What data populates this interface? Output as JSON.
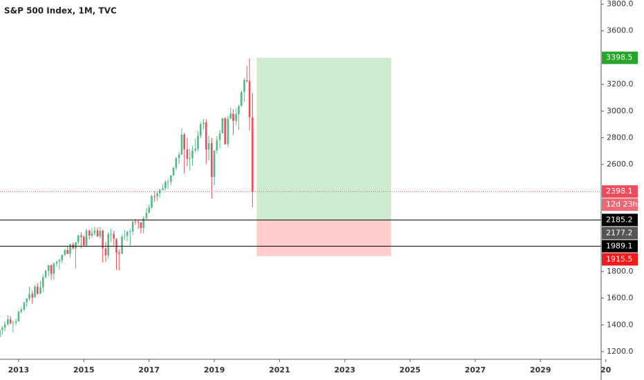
{
  "chart_data": {
    "type": "candlestick",
    "title": "S&P 500 Index, 1M, TVC",
    "x": [
      2012.42,
      2012.5,
      2012.58,
      2012.67,
      2012.75,
      2012.83,
      2012.92,
      2013.0,
      2013.08,
      2013.17,
      2013.25,
      2013.33,
      2013.42,
      2013.5,
      2013.58,
      2013.67,
      2013.75,
      2013.83,
      2013.92,
      2014.0,
      2014.08,
      2014.17,
      2014.25,
      2014.33,
      2014.42,
      2014.5,
      2014.58,
      2014.67,
      2014.75,
      2014.83,
      2014.92,
      2015.0,
      2015.08,
      2015.17,
      2015.25,
      2015.33,
      2015.42,
      2015.5,
      2015.58,
      2015.67,
      2015.75,
      2015.83,
      2015.92,
      2016.0,
      2016.08,
      2016.17,
      2016.25,
      2016.33,
      2016.42,
      2016.5,
      2016.58,
      2016.67,
      2016.75,
      2016.83,
      2016.92,
      2017.0,
      2017.08,
      2017.17,
      2017.25,
      2017.33,
      2017.42,
      2017.5,
      2017.58,
      2017.67,
      2017.75,
      2017.83,
      2017.92,
      2018.0,
      2018.08,
      2018.17,
      2018.25,
      2018.33,
      2018.42,
      2018.5,
      2018.58,
      2018.67,
      2018.75,
      2018.83,
      2018.92,
      2019.0,
      2019.08,
      2019.17,
      2019.25,
      2019.33,
      2019.42,
      2019.5,
      2019.58,
      2019.67,
      2019.75,
      2019.83,
      2019.92,
      2020.0,
      2020.08,
      2020.17
    ],
    "open": [
      1310,
      1362,
      1379,
      1406,
      1441,
      1412,
      1416,
      1426,
      1498,
      1515,
      1569,
      1598,
      1631,
      1606,
      1686,
      1633,
      1682,
      1757,
      1806,
      1848,
      1783,
      1859,
      1872,
      1884,
      1924,
      1960,
      1931,
      2003,
      1972,
      2018,
      2068,
      2059,
      1995,
      2105,
      2068,
      2086,
      2107,
      2063,
      2104,
      1972,
      1920,
      2079,
      2080,
      2044,
      1940,
      1932,
      2060,
      2065,
      2097,
      2099,
      2174,
      2171,
      2168,
      2126,
      2199,
      2239,
      2279,
      2364,
      2363,
      2384,
      2412,
      2423,
      2470,
      2472,
      2519,
      2575,
      2648,
      2674,
      2824,
      2714,
      2641,
      2648,
      2705,
      2718,
      2816,
      2902,
      2914,
      2712,
      2760,
      2507,
      2704,
      2784,
      2834,
      2946,
      2752,
      2942,
      2980,
      2926,
      2977,
      3038,
      3141,
      3231,
      3226,
      2954
    ],
    "high": [
      1363,
      1392,
      1427,
      1475,
      1465,
      1434,
      1448,
      1510,
      1531,
      1573,
      1598,
      1687,
      1654,
      1698,
      1710,
      1730,
      1776,
      1814,
      1849,
      1851,
      1868,
      1884,
      1897,
      1925,
      1968,
      1991,
      2006,
      2019,
      2019,
      2076,
      2093,
      2072,
      2120,
      2115,
      2126,
      2135,
      2130,
      2133,
      2113,
      2021,
      2094,
      2117,
      2104,
      2044,
      1963,
      2076,
      2111,
      2103,
      2121,
      2178,
      2194,
      2188,
      2169,
      2214,
      2278,
      2301,
      2371,
      2401,
      2399,
      2418,
      2454,
      2484,
      2491,
      2520,
      2582,
      2658,
      2695,
      2873,
      2836,
      2802,
      2718,
      2742,
      2791,
      2848,
      2917,
      2941,
      2940,
      2815,
      2800,
      2708,
      2813,
      2860,
      2950,
      2954,
      2964,
      3028,
      3014,
      3022,
      3050,
      3155,
      3248,
      3338,
      3394,
      3136
    ],
    "low": [
      1267,
      1325,
      1354,
      1396,
      1403,
      1343,
      1398,
      1426,
      1486,
      1501,
      1537,
      1581,
      1560,
      1604,
      1627,
      1633,
      1647,
      1747,
      1768,
      1737,
      1738,
      1834,
      1815,
      1862,
      1915,
      1930,
      1905,
      1964,
      1821,
      2001,
      1973,
      1988,
      1981,
      2040,
      2049,
      2068,
      2056,
      2045,
      1867,
      1872,
      1894,
      2019,
      1993,
      1812,
      1810,
      1932,
      2034,
      2026,
      1992,
      2074,
      2148,
      2120,
      2084,
      2084,
      2188,
      2234,
      2271,
      2322,
      2329,
      2353,
      2405,
      2407,
      2418,
      2447,
      2515,
      2557,
      2605,
      2674,
      2533,
      2586,
      2553,
      2595,
      2691,
      2698,
      2796,
      2864,
      2604,
      2631,
      2346,
      2444,
      2682,
      2722,
      2832,
      2750,
      2729,
      2940,
      2822,
      2892,
      2856,
      3036,
      3071,
      3214,
      2855,
      2280
    ],
    "close": [
      1362,
      1379,
      1406,
      1441,
      1412,
      1416,
      1426,
      1498,
      1515,
      1569,
      1598,
      1631,
      1606,
      1686,
      1633,
      1682,
      1757,
      1806,
      1848,
      1783,
      1859,
      1872,
      1884,
      1924,
      1960,
      1931,
      2003,
      1972,
      2018,
      2068,
      2059,
      1995,
      2105,
      2068,
      2086,
      2107,
      2063,
      2104,
      1972,
      1920,
      2079,
      2080,
      2044,
      1940,
      1932,
      2060,
      2065,
      2097,
      2099,
      2174,
      2171,
      2168,
      2126,
      2199,
      2239,
      2279,
      2364,
      2363,
      2384,
      2412,
      2423,
      2470,
      2472,
      2519,
      2575,
      2648,
      2674,
      2824,
      2714,
      2641,
      2648,
      2705,
      2718,
      2816,
      2902,
      2914,
      2712,
      2760,
      2507,
      2704,
      2784,
      2834,
      2946,
      2752,
      2942,
      2980,
      2926,
      2977,
      3038,
      3141,
      3231,
      3226,
      2954,
      2398.1
    ],
    "up_color": "#53b987",
    "down_color": "#eb4d5c",
    "xlim": [
      2012.43,
      2030.86
    ],
    "xticks": [
      2013,
      2015,
      2017,
      2019,
      2021,
      2023,
      2025,
      2027,
      2029,
      {
        "value": 2031,
        "label": "20"
      }
    ],
    "ylim": [
      1143,
      3831
    ],
    "yticks": [
      {
        "value": 3800,
        "label": "3800.0"
      },
      {
        "value": 3600,
        "label": "3600.0"
      },
      {
        "value": 3200,
        "label": "3200.0"
      },
      {
        "value": 3000,
        "label": "3000.0"
      },
      {
        "value": 2800,
        "label": "2800.0"
      },
      {
        "value": 2600,
        "label": "2600.0"
      },
      {
        "value": 1800,
        "label": "1800.0"
      },
      {
        "value": 1600,
        "label": "1600.0"
      },
      {
        "value": 1400,
        "label": "1400.0"
      },
      {
        "value": 1200,
        "label": "1200.0"
      }
    ],
    "last_price": {
      "value": 2398.1,
      "countdown": "12d 23h",
      "color": "#eb4d5c"
    },
    "price_lines": [
      {
        "value": 2185.2,
        "color": "#000000"
      },
      {
        "value": 1989.1,
        "color": "#000000"
      }
    ],
    "axis_labels": [
      {
        "value": 3398.5,
        "color": "#26a626"
      },
      {
        "value": 2177.2,
        "color": "#555555"
      },
      {
        "value": 1915.5,
        "color": "#f21a1a"
      }
    ],
    "position": {
      "x_start": 2020.3,
      "x_end": 2024.42,
      "target": 3398.5,
      "entry": 2185.2,
      "stop": 1915.5,
      "profit_color": "#cdebcd",
      "loss_color": "#ffcccc"
    }
  }
}
